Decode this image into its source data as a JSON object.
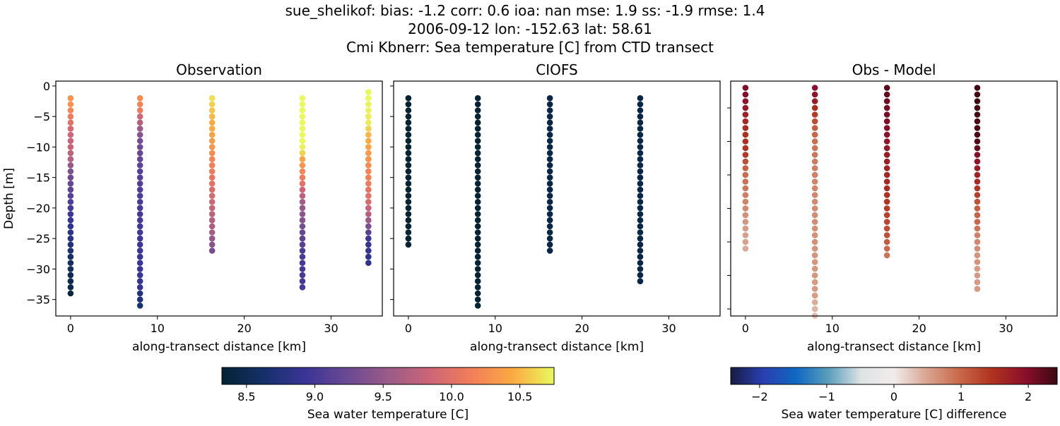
{
  "title_lines": [
    "sue_shelikof: bias: -1.2  corr: 0.6  ioa: nan  mse: 1.9  ss: -1.9  rmse: 1.4",
    "2006-09-12 lon: -152.63 lat: 58.61",
    "Cmi Kbnerr: Sea temperature [C] from CTD transect"
  ],
  "chart_data": [
    {
      "type": "scatter",
      "title": "Observation",
      "xlabel": "along-transect distance [km]",
      "ylabel": "Depth [m]",
      "xlim": [
        -1.7,
        35.9
      ],
      "ylim": [
        -37.7,
        0.8
      ],
      "xticks": [
        0,
        10,
        20,
        30
      ],
      "yticks": [
        0,
        -5,
        -10,
        -15,
        -20,
        -25,
        -30,
        -35
      ],
      "colormap": "thermal",
      "clim": [
        8.32,
        10.75
      ],
      "columns": [
        {
          "x": 0,
          "top_depth": -2,
          "values": [
            10.3,
            10.3,
            10.2,
            10.1,
            10.0,
            9.9,
            9.85,
            9.8,
            9.8,
            9.75,
            9.7,
            9.5,
            9.35,
            9.25,
            9.2,
            9.15,
            9.1,
            9.05,
            9.0,
            8.95,
            8.9,
            8.85,
            8.82,
            8.8,
            8.75,
            8.7,
            8.62,
            8.58,
            8.55,
            8.5,
            8.48,
            8.45,
            8.4
          ]
        },
        {
          "x": 8,
          "top_depth": -2,
          "values": [
            10.25,
            10.2,
            10.1,
            9.85,
            9.7,
            9.55,
            9.4,
            9.3,
            9.25,
            9.2,
            9.18,
            9.15,
            9.12,
            9.1,
            9.08,
            9.06,
            9.05,
            9.03,
            9.02,
            9.0,
            9.0,
            8.98,
            8.97,
            8.96,
            8.95,
            8.94,
            8.93,
            8.92,
            8.91,
            8.9,
            8.9,
            8.88,
            8.75,
            8.7,
            8.65
          ]
        },
        {
          "x": 16.3,
          "top_depth": -2,
          "values": [
            10.65,
            10.6,
            10.55,
            10.5,
            10.45,
            10.45,
            10.4,
            10.35,
            10.3,
            10.25,
            10.2,
            10.15,
            10.1,
            10.05,
            10.0,
            9.95,
            9.9,
            9.85,
            9.8,
            9.75,
            9.7,
            9.65,
            9.6,
            9.5,
            9.4,
            9.3
          ]
        },
        {
          "x": 26.7,
          "top_depth": -2,
          "values": [
            10.8,
            10.8,
            10.8,
            10.78,
            10.78,
            10.75,
            10.75,
            10.75,
            10.72,
            10.6,
            10.4,
            10.3,
            10.2,
            10.1,
            10.0,
            9.85,
            9.75,
            9.6,
            9.5,
            9.45,
            9.4,
            9.3,
            9.2,
            9.15,
            9.1,
            9.05,
            9.05,
            9.0,
            9.0,
            9.0,
            9.0,
            9.0
          ]
        },
        {
          "x": 34.3,
          "top_depth": -1,
          "values": [
            10.75,
            10.75,
            10.72,
            10.72,
            10.7,
            10.7,
            10.6,
            10.5,
            10.45,
            10.4,
            10.35,
            10.3,
            10.25,
            10.2,
            10.15,
            10.1,
            10.05,
            10.0,
            9.9,
            9.8,
            9.7,
            9.55,
            9.35,
            9.1,
            8.95,
            8.9,
            8.9,
            8.85,
            8.85
          ]
        }
      ]
    },
    {
      "type": "scatter",
      "title": "CIOFS",
      "xlabel": "along-transect distance [km]",
      "xlim": [
        -1.7,
        35.9
      ],
      "ylim": [
        -37.7,
        0.8
      ],
      "xticks": [
        0,
        10,
        20,
        30
      ],
      "yticks": [
        0,
        -5,
        -10,
        -15,
        -20,
        -25,
        -30,
        -35
      ],
      "colormap": "thermal",
      "clim": [
        8.32,
        10.75
      ],
      "columns": [
        {
          "x": 0,
          "top_depth": -2,
          "values": [
            8.3,
            8.3,
            8.3,
            8.3,
            8.3,
            8.3,
            8.3,
            8.3,
            8.3,
            8.3,
            8.3,
            8.3,
            8.3,
            8.3,
            8.3,
            8.3,
            8.3,
            8.3,
            8.3,
            8.3,
            8.3,
            8.3,
            8.3,
            8.3,
            8.3
          ]
        },
        {
          "x": 8,
          "top_depth": -2,
          "values": [
            8.32,
            8.32,
            8.32,
            8.32,
            8.32,
            8.32,
            8.32,
            8.32,
            8.32,
            8.32,
            8.32,
            8.32,
            8.32,
            8.32,
            8.32,
            8.32,
            8.32,
            8.32,
            8.32,
            8.32,
            8.32,
            8.32,
            8.32,
            8.32,
            8.32,
            8.32,
            8.32,
            8.32,
            8.32,
            8.32,
            8.32,
            8.32,
            8.32,
            8.32,
            8.32
          ]
        },
        {
          "x": 16.3,
          "top_depth": -2,
          "values": [
            8.42,
            8.42,
            8.42,
            8.42,
            8.42,
            8.42,
            8.42,
            8.42,
            8.42,
            8.42,
            8.42,
            8.42,
            8.42,
            8.42,
            8.42,
            8.42,
            8.42,
            8.42,
            8.42,
            8.42,
            8.42,
            8.42,
            8.42,
            8.42,
            8.42,
            8.42
          ]
        },
        {
          "x": 26.7,
          "top_depth": -2,
          "values": [
            8.42,
            8.42,
            8.42,
            8.42,
            8.42,
            8.42,
            8.42,
            8.42,
            8.42,
            8.42,
            8.42,
            8.42,
            8.42,
            8.42,
            8.42,
            8.42,
            8.42,
            8.42,
            8.42,
            8.42,
            8.42,
            8.42,
            8.42,
            8.42,
            8.42,
            8.42,
            8.42,
            8.42,
            8.42,
            8.42,
            8.42
          ]
        }
      ]
    },
    {
      "type": "scatter",
      "title": "Obs - Model",
      "xlabel": "along-transect distance [km]",
      "xlim": [
        -1.7,
        35.9
      ],
      "ylim": [
        -36.05,
        -1.0
      ],
      "xticks": [
        0,
        10,
        20,
        30
      ],
      "yticks": [
        -5,
        -10,
        -15,
        -20,
        -25,
        -30,
        -35
      ],
      "colormap": "balance",
      "clim": [
        -2.43,
        2.43
      ],
      "columns": [
        {
          "x": 0,
          "top_depth": -2,
          "values": [
            2.0,
            2.0,
            1.9,
            1.8,
            1.7,
            1.6,
            1.55,
            1.5,
            1.5,
            1.45,
            1.4,
            1.2,
            1.05,
            0.95,
            0.9,
            0.85,
            0.8,
            0.75,
            0.7,
            0.65,
            0.6,
            0.55,
            0.52,
            0.5,
            0.45
          ]
        },
        {
          "x": 8,
          "top_depth": -2,
          "values": [
            1.93,
            1.88,
            1.78,
            1.53,
            1.38,
            1.23,
            1.08,
            0.98,
            0.93,
            0.88,
            0.86,
            0.83,
            0.8,
            0.78,
            0.76,
            0.74,
            0.73,
            0.71,
            0.7,
            0.68,
            0.68,
            0.66,
            0.65,
            0.64,
            0.63,
            0.62,
            0.61,
            0.6,
            0.59,
            0.58,
            0.58,
            0.56,
            0.43,
            0.38,
            0.33
          ]
        },
        {
          "x": 16.3,
          "top_depth": -2,
          "values": [
            2.23,
            2.18,
            2.13,
            2.08,
            2.03,
            2.03,
            1.98,
            1.93,
            1.88,
            1.83,
            1.78,
            1.73,
            1.68,
            1.63,
            1.58,
            1.53,
            1.48,
            1.43,
            1.38,
            1.33,
            1.28,
            1.23,
            1.18,
            1.08,
            0.98,
            0.88
          ]
        },
        {
          "x": 26.7,
          "top_depth": -2,
          "values": [
            2.38,
            2.38,
            2.38,
            2.36,
            2.36,
            2.33,
            2.33,
            2.33,
            2.3,
            2.18,
            1.98,
            1.88,
            1.78,
            1.68,
            1.58,
            1.43,
            1.33,
            1.18,
            1.08,
            1.03,
            0.98,
            0.88,
            0.78,
            0.73,
            0.68,
            0.63,
            0.63,
            0.58,
            0.58,
            0.58,
            0.58
          ]
        }
      ]
    }
  ],
  "colorbars": [
    {
      "label": "Sea water temperature [C]",
      "colormap": "thermal",
      "range": [
        8.32,
        10.75
      ],
      "ticks": [
        "8.5",
        "9.0",
        "9.5",
        "10.0",
        "10.5"
      ]
    },
    {
      "label": "Sea water temperature [C] difference",
      "colormap": "balance",
      "range": [
        -2.43,
        2.43
      ],
      "ticks": [
        "−2",
        "−1",
        "0",
        "1",
        "2"
      ]
    }
  ],
  "colormaps": {
    "thermal": [
      "#042333",
      "#14306a",
      "#3a3496",
      "#6a4993",
      "#9a5b88",
      "#cc6577",
      "#f27e5a",
      "#fba942",
      "#e8fa5b"
    ],
    "balance": [
      "#181c43",
      "#2a3fb0",
      "#0f68c2",
      "#5a9ebb",
      "#dfe3e4",
      "#f1ecec",
      "#d9a491",
      "#c9694a",
      "#b0321f",
      "#8c0f2a",
      "#3c0912"
    ]
  }
}
